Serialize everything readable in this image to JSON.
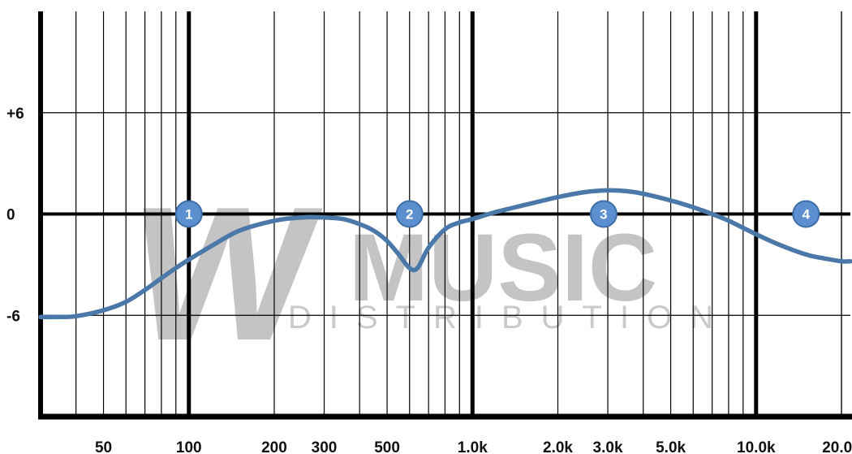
{
  "chart_data": {
    "type": "line",
    "x_scale": "log",
    "xlim": [
      30,
      21500
    ],
    "ylim": [
      -12,
      12
    ],
    "grid": true,
    "x_ticks": [
      {
        "value": 50,
        "label": "50"
      },
      {
        "value": 100,
        "label": "100"
      },
      {
        "value": 200,
        "label": "200"
      },
      {
        "value": 300,
        "label": "300"
      },
      {
        "value": 500,
        "label": "500"
      },
      {
        "value": 1000,
        "label": "1.0k"
      },
      {
        "value": 2000,
        "label": "2.0k"
      },
      {
        "value": 3000,
        "label": "3.0k"
      },
      {
        "value": 5000,
        "label": "5.0k"
      },
      {
        "value": 10000,
        "label": "10.0k"
      },
      {
        "value": 20000,
        "label": "20.0k"
      }
    ],
    "y_ticks": [
      {
        "value": 6,
        "label": "+6"
      },
      {
        "value": 0,
        "label": "0"
      },
      {
        "value": -6,
        "label": "-6"
      }
    ],
    "series": [
      {
        "color": "#4a78a8",
        "x": [
          30,
          35,
          40,
          50,
          60,
          70,
          80,
          90,
          100,
          120,
          150,
          200,
          250,
          300,
          350,
          400,
          450,
          500,
          550,
          600,
          640,
          700,
          800,
          900,
          1000,
          1200,
          1500,
          2000,
          2500,
          3000,
          3500,
          4000,
          5000,
          6000,
          7000,
          8000,
          10000,
          12000,
          15000,
          17000,
          20000,
          21500
        ],
        "y": [
          -6.1,
          -6.1,
          -6.05,
          -5.7,
          -5.2,
          -4.5,
          -3.8,
          -3.2,
          -2.7,
          -1.9,
          -1.0,
          -0.4,
          -0.2,
          -0.2,
          -0.3,
          -0.6,
          -1.0,
          -1.6,
          -2.4,
          -3.2,
          -3.2,
          -2.0,
          -0.9,
          -0.5,
          -0.3,
          0.1,
          0.5,
          1.0,
          1.3,
          1.4,
          1.35,
          1.2,
          0.8,
          0.4,
          0.0,
          -0.4,
          -1.2,
          -1.8,
          -2.4,
          -2.6,
          -2.8,
          -2.8
        ]
      }
    ],
    "band_markers": [
      {
        "label": "1",
        "x": 100,
        "y": 0
      },
      {
        "label": "2",
        "x": 600,
        "y": 0
      },
      {
        "label": "3",
        "x": 2900,
        "y": 0
      },
      {
        "label": "4",
        "x": 15000,
        "y": 0
      }
    ],
    "colors": {
      "grid": "#000000",
      "curve": "#4a78a8",
      "marker_fill": "#5b8fd0",
      "marker_stroke": "#3e6ea8"
    }
  },
  "watermark": {
    "logo_letter": "W",
    "word1": "MUSIC",
    "word2": "DISTRIBUTION"
  }
}
